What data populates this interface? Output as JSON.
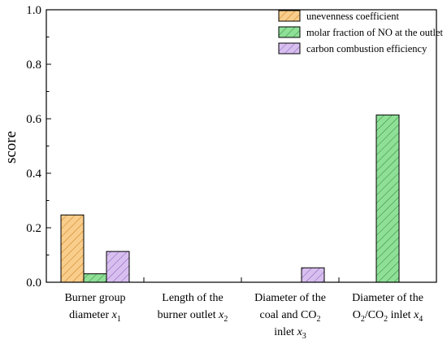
{
  "chart_data": {
    "type": "bar",
    "ylabel": "score",
    "ylim": [
      0,
      1.0
    ],
    "yticks": [
      "0.0",
      "0.2",
      "0.4",
      "0.6",
      "0.8",
      "1.0"
    ],
    "grid": false,
    "legend_position": "top-right",
    "categories": [
      {
        "lines": [
          [
            {
              "t": "Burner group"
            }
          ],
          [
            {
              "t": "diameter "
            },
            {
              "t": "x",
              "i": true
            },
            {
              "t": "1",
              "sub": true
            }
          ]
        ]
      },
      {
        "lines": [
          [
            {
              "t": "Length of the"
            }
          ],
          [
            {
              "t": "burner outlet "
            },
            {
              "t": "x",
              "i": true
            },
            {
              "t": "2",
              "sub": true
            }
          ]
        ]
      },
      {
        "lines": [
          [
            {
              "t": "Diameter of the"
            }
          ],
          [
            {
              "t": "coal and CO"
            },
            {
              "t": "2",
              "sub": true
            }
          ],
          [
            {
              "t": "inlet "
            },
            {
              "t": "x",
              "i": true
            },
            {
              "t": "3",
              "sub": true
            }
          ]
        ]
      },
      {
        "lines": [
          [
            {
              "t": "Diameter of the"
            }
          ],
          [
            {
              "t": "O"
            },
            {
              "t": "2",
              "sub": true
            },
            {
              "t": "/CO"
            },
            {
              "t": "2",
              "sub": true
            },
            {
              "t": " inlet "
            },
            {
              "t": "x",
              "i": true
            },
            {
              "t": "4",
              "sub": true
            }
          ]
        ]
      }
    ],
    "series": [
      {
        "name": "unevenness coefficient",
        "color": "#f9cd8b",
        "stroke": "#c77d16",
        "values": [
          0.247,
          0.0,
          0.0,
          0.0
        ]
      },
      {
        "name": "molar fraction of NO at the outlet",
        "color": "#8fdf97",
        "stroke": "#2a8a36",
        "values": [
          0.031,
          0.0,
          0.0,
          0.614
        ]
      },
      {
        "name": "carbon combustion efficiency",
        "color": "#d7bff0",
        "stroke": "#8a5bb5",
        "values": [
          0.113,
          0.0,
          0.053,
          0.0
        ]
      }
    ]
  }
}
